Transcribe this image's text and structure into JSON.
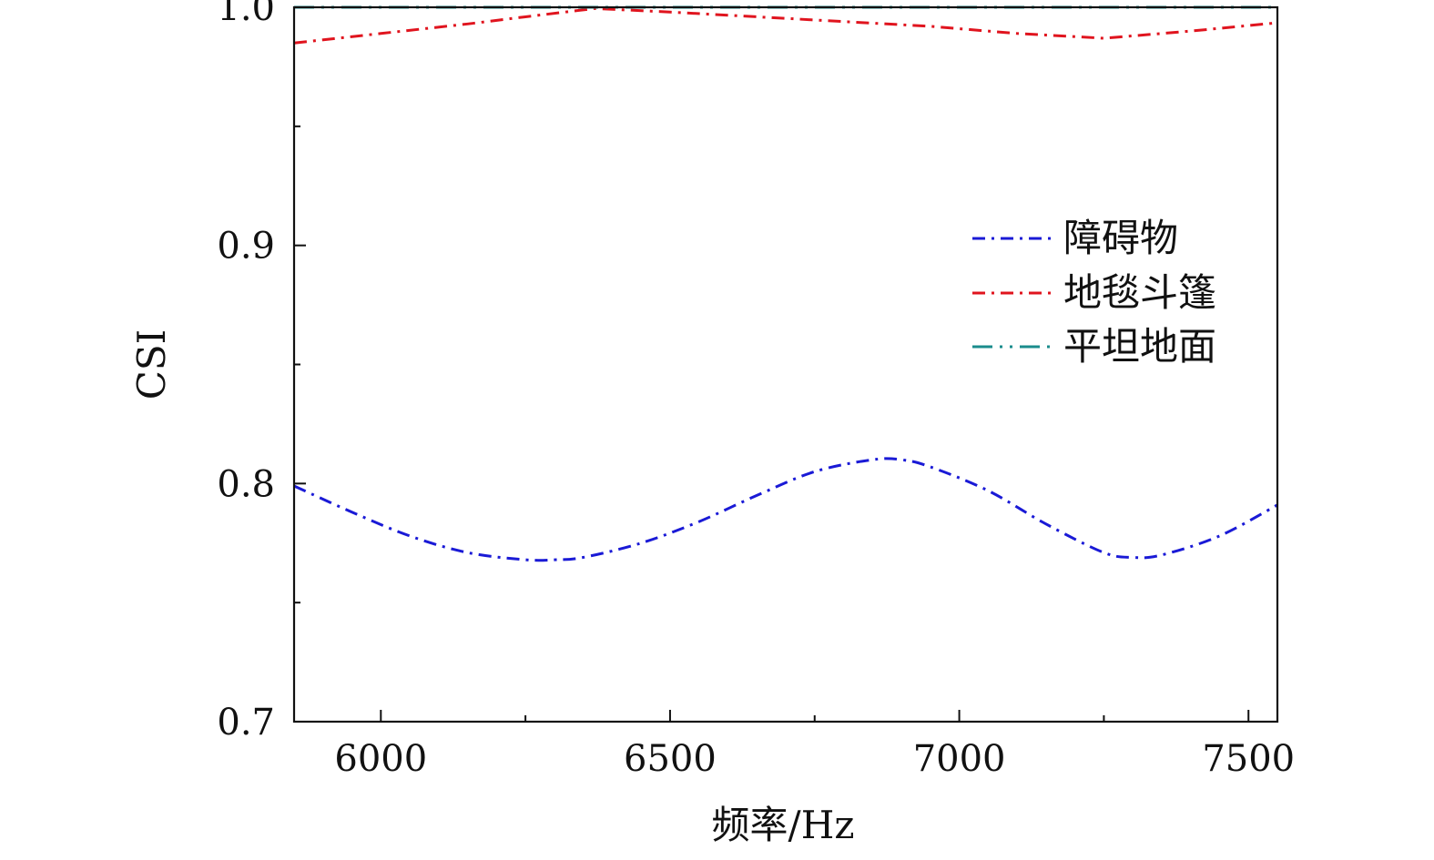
{
  "chart_data": {
    "type": "line",
    "xlabel": "频率/Hz",
    "ylabel": "CSI",
    "xlim": [
      5850,
      7550
    ],
    "ylim": [
      0.7,
      1.0
    ],
    "x_major_ticks": [
      6000,
      6500,
      7000,
      7500
    ],
    "x_minor_ticks": [
      6250,
      6750,
      7250
    ],
    "y_major_ticks": [
      0.7,
      0.8,
      0.9,
      1.0
    ],
    "y_minor_ticks": [
      0.75,
      0.85,
      0.95
    ],
    "x_tick_labels": [
      "6000",
      "6500",
      "7000",
      "7500"
    ],
    "y_tick_labels": [
      "0.7",
      "0.8",
      "0.9",
      "1.0"
    ],
    "legend_position": "upper-right",
    "series": [
      {
        "name": "障碍物",
        "color": "#1a1ad6",
        "dash": "dash-dot",
        "x": [
          5850,
          5950,
          6050,
          6150,
          6250,
          6300,
          6350,
          6450,
          6550,
          6650,
          6750,
          6850,
          6900,
          6950,
          7050,
          7150,
          7250,
          7300,
          7350,
          7450,
          7550
        ],
        "y": [
          0.799,
          0.788,
          0.778,
          0.771,
          0.768,
          0.768,
          0.769,
          0.775,
          0.784,
          0.795,
          0.805,
          0.81,
          0.81,
          0.807,
          0.797,
          0.783,
          0.771,
          0.769,
          0.77,
          0.778,
          0.791
        ]
      },
      {
        "name": "地毯斗篷",
        "color": "#e0141e",
        "dash": "dash-dot",
        "x": [
          5850,
          6000,
          6150,
          6250,
          6370,
          6500,
          6650,
          6800,
          6950,
          7100,
          7250,
          7400,
          7550
        ],
        "y": [
          0.985,
          0.989,
          0.993,
          0.996,
          0.9995,
          0.998,
          0.996,
          0.994,
          0.992,
          0.989,
          0.987,
          0.99,
          0.9935
        ]
      },
      {
        "name": "平坦地面",
        "color": "#1a8c8c",
        "dash": "dash-dot-dot",
        "x": [
          5850,
          7550
        ],
        "y": [
          1.0,
          1.0
        ]
      }
    ]
  }
}
